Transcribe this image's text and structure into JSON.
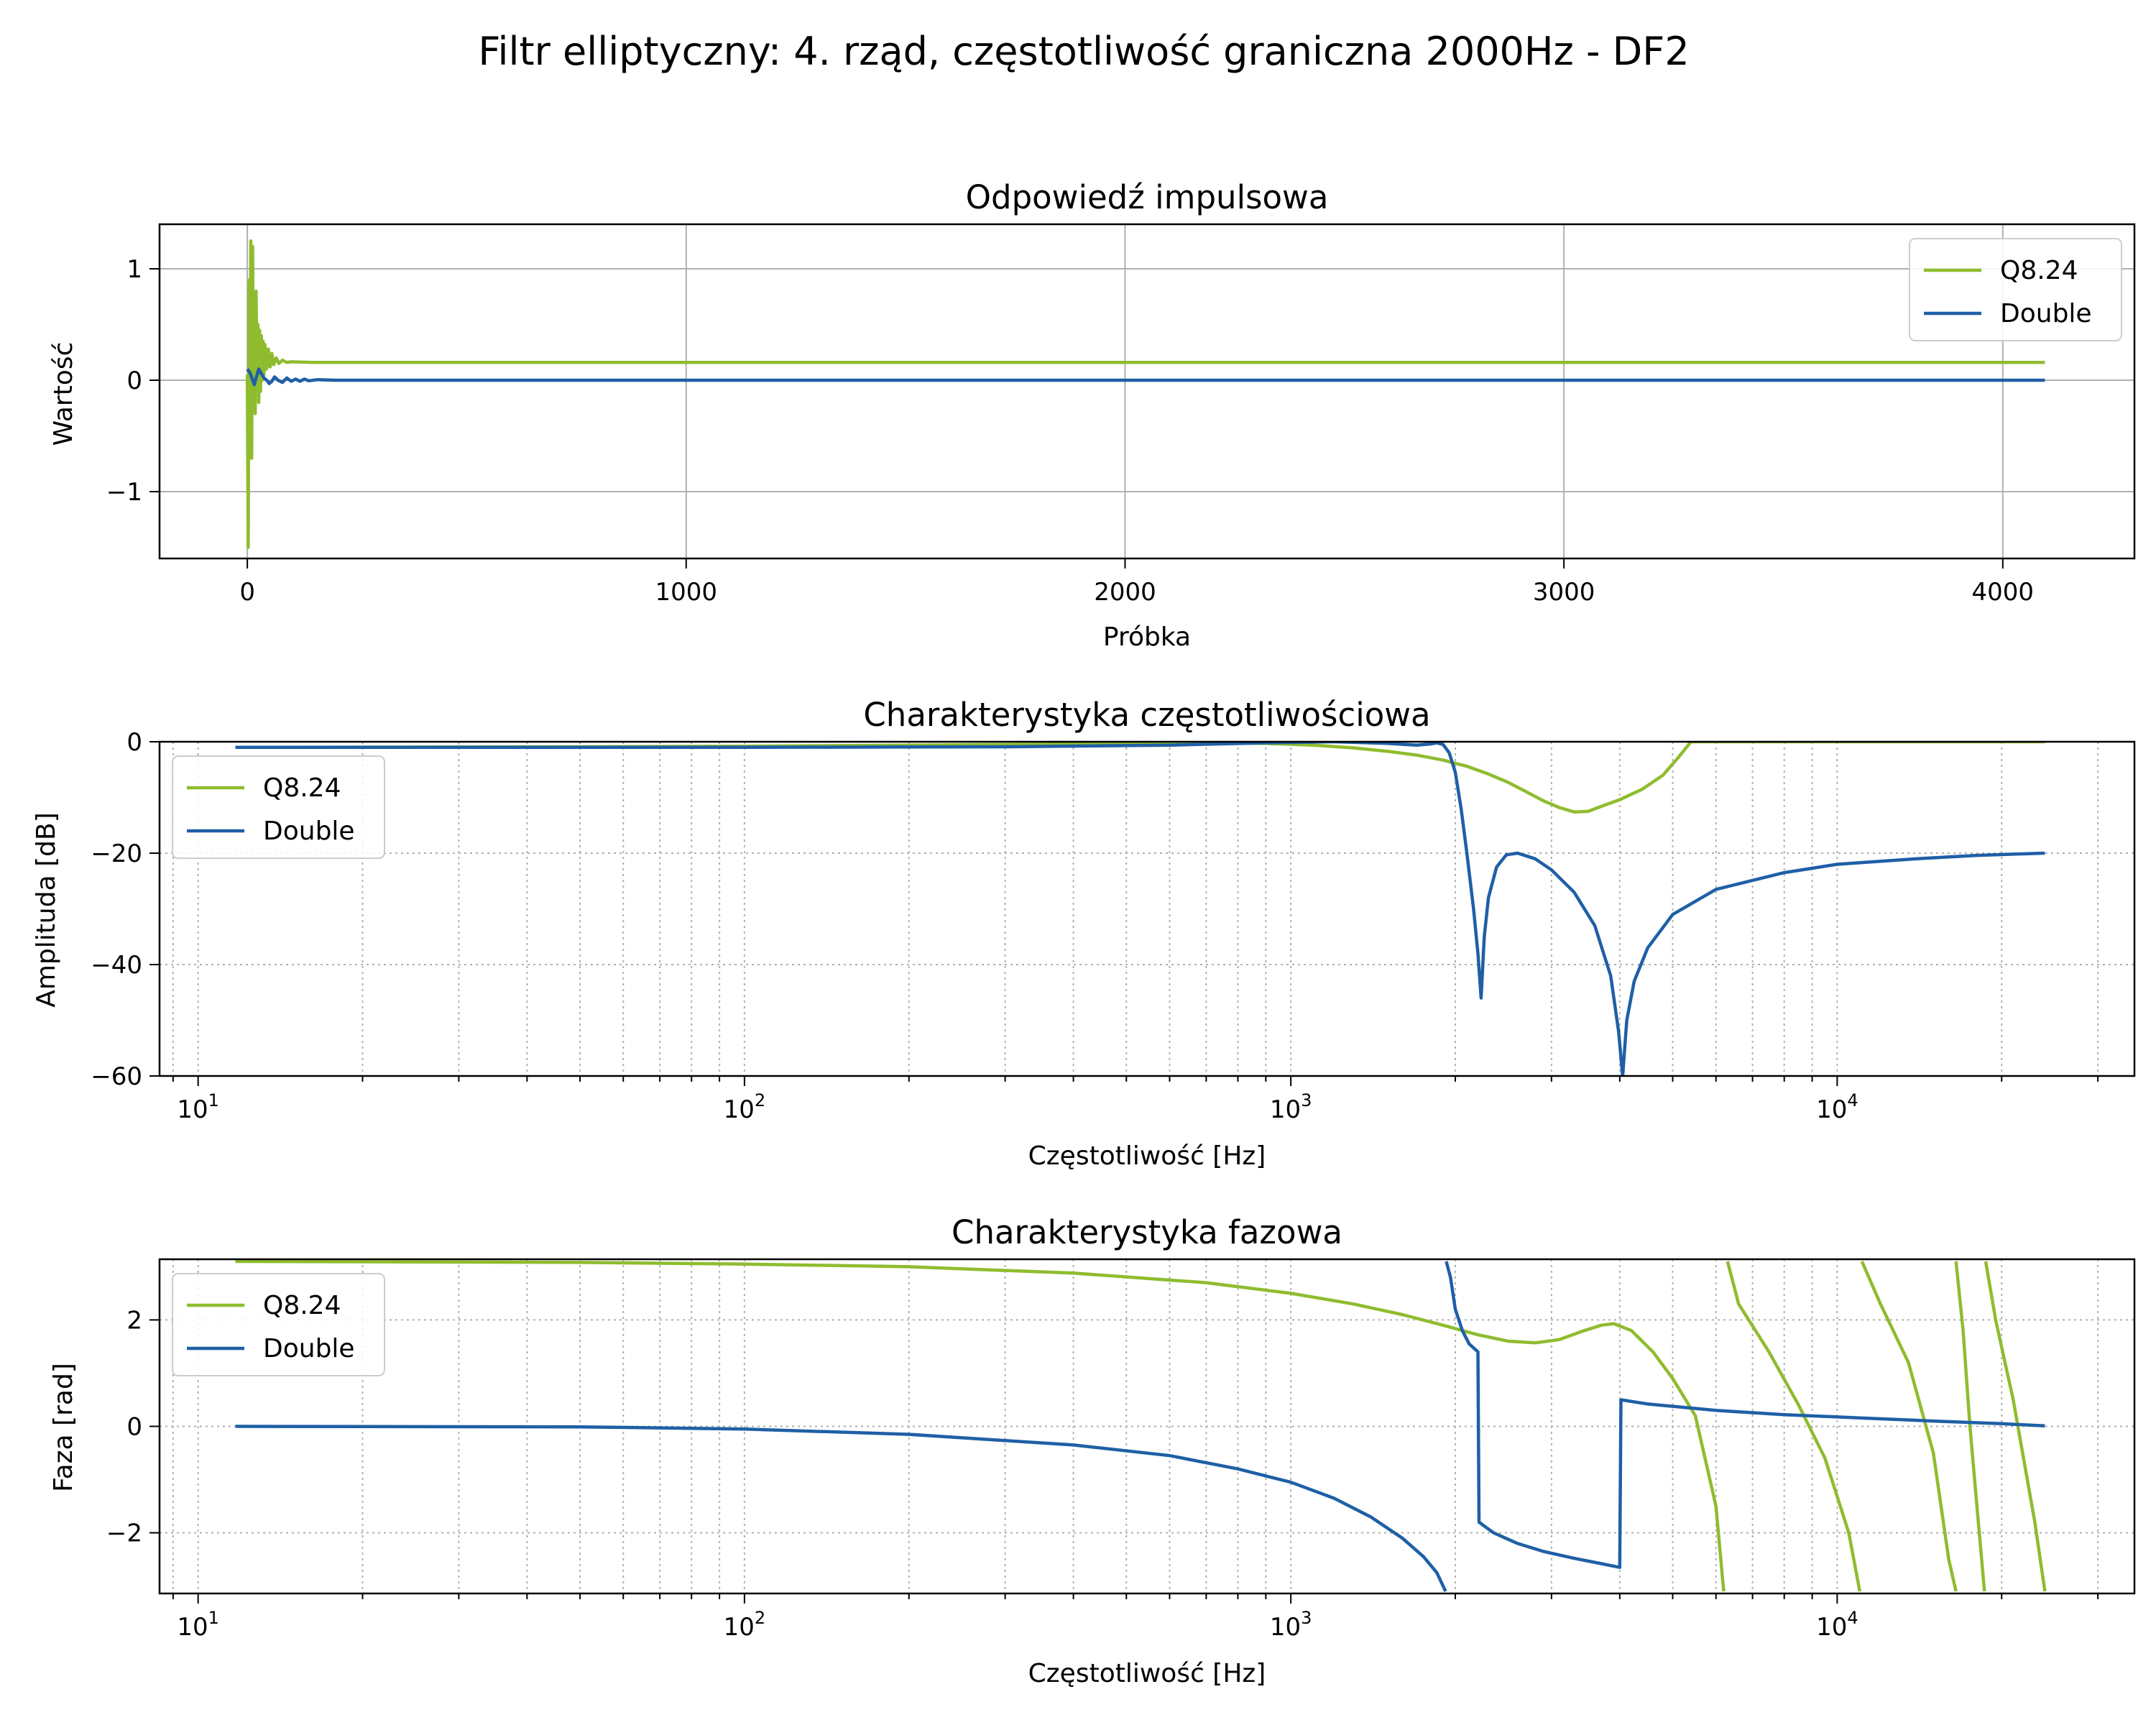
{
  "figure_title": "Filtr elliptyczny: 4. rząd, częstotliwość graniczna 2000Hz - DF2",
  "colors": {
    "q824": "#8fbc2f",
    "double": "#1f5fa6",
    "grid": "#b0b0b0"
  },
  "chart_data": [
    {
      "type": "line",
      "title": "Odpowiedź impulsowa",
      "xlabel": "Próbka",
      "ylabel": "Wartość",
      "xscale": "linear",
      "xlim": [
        -200,
        4300
      ],
      "ylim": [
        -1.6,
        1.4
      ],
      "xticks": [
        0,
        1000,
        2000,
        3000,
        4000
      ],
      "xtick_labels": [
        "0",
        "1000",
        "2000",
        "3000",
        "4000"
      ],
      "yticks": [
        1,
        0,
        -1
      ],
      "ytick_labels": [
        "1",
        "0",
        "−1"
      ],
      "grid": "major-solid",
      "legend_position": "upper right",
      "series": [
        {
          "name": "Q8.24",
          "color": "#8fbc2f",
          "points": [
            [
              0,
              0.05
            ],
            [
              2,
              -1.5
            ],
            [
              4,
              0.9
            ],
            [
              6,
              -0.6
            ],
            [
              8,
              1.25
            ],
            [
              10,
              -0.7
            ],
            [
              12,
              1.2
            ],
            [
              14,
              -0.2
            ],
            [
              16,
              0.6
            ],
            [
              18,
              -0.3
            ],
            [
              20,
              0.8
            ],
            [
              22,
              0.0
            ],
            [
              24,
              0.5
            ],
            [
              26,
              -0.2
            ],
            [
              28,
              0.45
            ],
            [
              30,
              -0.1
            ],
            [
              32,
              0.4
            ],
            [
              34,
              0.0
            ],
            [
              36,
              0.35
            ],
            [
              38,
              0.05
            ],
            [
              40,
              0.32
            ],
            [
              44,
              0.1
            ],
            [
              48,
              0.28
            ],
            [
              52,
              0.12
            ],
            [
              56,
              0.24
            ],
            [
              60,
              0.14
            ],
            [
              66,
              0.2
            ],
            [
              72,
              0.15
            ],
            [
              80,
              0.18
            ],
            [
              90,
              0.16
            ],
            [
              100,
              0.165
            ],
            [
              150,
              0.16
            ],
            [
              4096,
              0.16
            ]
          ]
        },
        {
          "name": "Double",
          "color": "#1f5fa6",
          "points": [
            [
              0,
              0.1
            ],
            [
              4,
              0.08
            ],
            [
              8,
              0.05
            ],
            [
              12,
              0.0
            ],
            [
              16,
              -0.04
            ],
            [
              20,
              0.02
            ],
            [
              26,
              0.1
            ],
            [
              32,
              0.06
            ],
            [
              38,
              0.02
            ],
            [
              44,
              0.0
            ],
            [
              50,
              -0.03
            ],
            [
              56,
              -0.01
            ],
            [
              62,
              0.03
            ],
            [
              70,
              0.0
            ],
            [
              80,
              -0.02
            ],
            [
              90,
              0.02
            ],
            [
              100,
              -0.01
            ],
            [
              110,
              0.01
            ],
            [
              120,
              -0.01
            ],
            [
              130,
              0.01
            ],
            [
              140,
              -0.005
            ],
            [
              160,
              0.005
            ],
            [
              200,
              0.0
            ],
            [
              4096,
              0.0
            ]
          ]
        }
      ]
    },
    {
      "type": "line",
      "title": "Charakterystyka częstotliwościowa",
      "xlabel": "Częstotliwość [Hz]",
      "ylabel": "Amplituda [dB]",
      "xscale": "log",
      "xlim": [
        8.5,
        35000
      ],
      "ylim": [
        -60,
        0
      ],
      "xticks": [
        10,
        100,
        1000,
        10000
      ],
      "xtick_labels": [
        {
          "base": "10",
          "exp": "1"
        },
        {
          "base": "10",
          "exp": "2"
        },
        {
          "base": "10",
          "exp": "3"
        },
        {
          "base": "10",
          "exp": "4"
        }
      ],
      "yticks": [
        0,
        -20,
        -40,
        -60
      ],
      "ytick_labels": [
        "0",
        "−20",
        "−40",
        "−60"
      ],
      "grid": "major-and-minor-dotted",
      "legend_position": "upper left",
      "series": [
        {
          "name": "Q8.24",
          "color": "#8fbc2f",
          "points": [
            [
              11.7,
              -1.0
            ],
            [
              50,
              -0.9
            ],
            [
              100,
              -0.8
            ],
            [
              300,
              -0.5
            ],
            [
              500,
              -0.3
            ],
            [
              700,
              -0.2
            ],
            [
              900,
              -0.3
            ],
            [
              1100,
              -0.6
            ],
            [
              1300,
              -1.1
            ],
            [
              1500,
              -1.7
            ],
            [
              1700,
              -2.4
            ],
            [
              1900,
              -3.3
            ],
            [
              2100,
              -4.4
            ],
            [
              2300,
              -5.8
            ],
            [
              2500,
              -7.3
            ],
            [
              2700,
              -9.0
            ],
            [
              2900,
              -10.6
            ],
            [
              3100,
              -11.8
            ],
            [
              3300,
              -12.6
            ],
            [
              3500,
              -12.5
            ],
            [
              3700,
              -11.6
            ],
            [
              4000,
              -10.4
            ],
            [
              4400,
              -8.5
            ],
            [
              4800,
              -6.0
            ],
            [
              5100,
              -3.0
            ],
            [
              5400,
              0.0
            ],
            [
              5500,
              0.0
            ],
            [
              24000,
              0.0
            ]
          ]
        },
        {
          "name": "Double",
          "color": "#1f5fa6",
          "points": [
            [
              11.7,
              -1.0
            ],
            [
              100,
              -1.0
            ],
            [
              300,
              -0.9
            ],
            [
              600,
              -0.6
            ],
            [
              900,
              -0.2
            ],
            [
              1200,
              0.0
            ],
            [
              1500,
              -0.3
            ],
            [
              1700,
              -0.6
            ],
            [
              1800,
              -0.4
            ],
            [
              1850,
              -0.2
            ],
            [
              1900,
              -0.5
            ],
            [
              1950,
              -2.0
            ],
            [
              2000,
              -5.5
            ],
            [
              2050,
              -12.0
            ],
            [
              2100,
              -20.0
            ],
            [
              2160,
              -30.0
            ],
            [
              2200,
              -38.0
            ],
            [
              2230,
              -46.0
            ],
            [
              2260,
              -35.0
            ],
            [
              2300,
              -28.0
            ],
            [
              2380,
              -22.5
            ],
            [
              2480,
              -20.3
            ],
            [
              2600,
              -20.0
            ],
            [
              2800,
              -21.0
            ],
            [
              3000,
              -23.0
            ],
            [
              3300,
              -27.0
            ],
            [
              3600,
              -33.0
            ],
            [
              3850,
              -42.0
            ],
            [
              3980,
              -52.0
            ],
            [
              4050,
              -60.0
            ],
            [
              4120,
              -50.0
            ],
            [
              4250,
              -43.0
            ],
            [
              4500,
              -37.0
            ],
            [
              5000,
              -31.0
            ],
            [
              6000,
              -26.5
            ],
            [
              8000,
              -23.5
            ],
            [
              10000,
              -22.0
            ],
            [
              14000,
              -21.0
            ],
            [
              18000,
              -20.4
            ],
            [
              24000,
              -20.0
            ]
          ]
        }
      ]
    },
    {
      "type": "line",
      "title": "Charakterystyka fazowa",
      "xlabel": "Częstotliwość [Hz]",
      "ylabel": "Faza [rad]",
      "xscale": "log",
      "xlim": [
        8.5,
        35000
      ],
      "ylim": [
        -3.14,
        3.14
      ],
      "xticks": [
        10,
        100,
        1000,
        10000
      ],
      "xtick_labels": [
        {
          "base": "10",
          "exp": "1"
        },
        {
          "base": "10",
          "exp": "2"
        },
        {
          "base": "10",
          "exp": "3"
        },
        {
          "base": "10",
          "exp": "4"
        }
      ],
      "yticks": [
        2,
        0,
        -2
      ],
      "ytick_labels": [
        "2",
        "0",
        "−2"
      ],
      "grid": "major-and-minor-dotted",
      "legend_position": "upper left",
      "series": [
        {
          "name": "Q8.24",
          "color": "#8fbc2f",
          "points": [
            [
              11.7,
              3.1
            ],
            [
              50,
              3.08
            ],
            [
              100,
              3.05
            ],
            [
              200,
              3.0
            ],
            [
              400,
              2.88
            ],
            [
              700,
              2.7
            ],
            [
              1000,
              2.5
            ],
            [
              1300,
              2.3
            ],
            [
              1600,
              2.1
            ],
            [
              1900,
              1.9
            ],
            [
              2200,
              1.72
            ],
            [
              2500,
              1.6
            ],
            [
              2800,
              1.57
            ],
            [
              3100,
              1.63
            ],
            [
              3400,
              1.78
            ],
            [
              3700,
              1.9
            ],
            [
              3900,
              1.93
            ],
            [
              4200,
              1.8
            ],
            [
              4600,
              1.4
            ],
            [
              5000,
              0.9
            ],
            [
              5500,
              0.2
            ],
            [
              6000,
              -1.5
            ],
            [
              6200,
              -3.1
            ],
            [
              null,
              null
            ],
            [
              6300,
              3.1
            ],
            [
              6600,
              2.3
            ],
            [
              7500,
              1.4
            ],
            [
              8500,
              0.4
            ],
            [
              9500,
              -0.6
            ],
            [
              10500,
              -2.0
            ],
            [
              11000,
              -3.1
            ],
            [
              null,
              null
            ],
            [
              11100,
              3.1
            ],
            [
              12000,
              2.3
            ],
            [
              13500,
              1.2
            ],
            [
              15000,
              -0.5
            ],
            [
              16000,
              -2.5
            ],
            [
              16500,
              -3.1
            ],
            [
              null,
              null
            ],
            [
              16500,
              3.1
            ],
            [
              17000,
              1.8
            ],
            [
              17500,
              0.0
            ],
            [
              18200,
              -2.0
            ],
            [
              18600,
              -3.1
            ],
            [
              null,
              null
            ],
            [
              18700,
              3.1
            ],
            [
              19500,
              2.0
            ],
            [
              21000,
              0.5
            ],
            [
              23000,
              -1.8
            ],
            [
              24000,
              -3.1
            ]
          ]
        },
        {
          "name": "Double",
          "color": "#1f5fa6",
          "points": [
            [
              11.7,
              0.0
            ],
            [
              50,
              -0.01
            ],
            [
              100,
              -0.05
            ],
            [
              200,
              -0.15
            ],
            [
              400,
              -0.35
            ],
            [
              600,
              -0.55
            ],
            [
              800,
              -0.8
            ],
            [
              1000,
              -1.05
            ],
            [
              1200,
              -1.35
            ],
            [
              1400,
              -1.7
            ],
            [
              1600,
              -2.1
            ],
            [
              1750,
              -2.45
            ],
            [
              1850,
              -2.75
            ],
            [
              1920,
              -3.1
            ],
            [
              null,
              null
            ],
            [
              1925,
              3.1
            ],
            [
              1960,
              2.8
            ],
            [
              2000,
              2.2
            ],
            [
              2060,
              1.8
            ],
            [
              2120,
              1.55
            ],
            [
              2200,
              1.4
            ],
            [
              2210,
              -1.8
            ],
            [
              2350,
              -2.0
            ],
            [
              2600,
              -2.2
            ],
            [
              2900,
              -2.35
            ],
            [
              3300,
              -2.48
            ],
            [
              3700,
              -2.58
            ],
            [
              4000,
              -2.65
            ],
            [
              4020,
              0.5
            ],
            [
              4500,
              0.42
            ],
            [
              6000,
              0.3
            ],
            [
              8000,
              0.22
            ],
            [
              11000,
              0.16
            ],
            [
              15000,
              0.1
            ],
            [
              20000,
              0.05
            ],
            [
              24000,
              0.01
            ]
          ]
        }
      ]
    }
  ]
}
